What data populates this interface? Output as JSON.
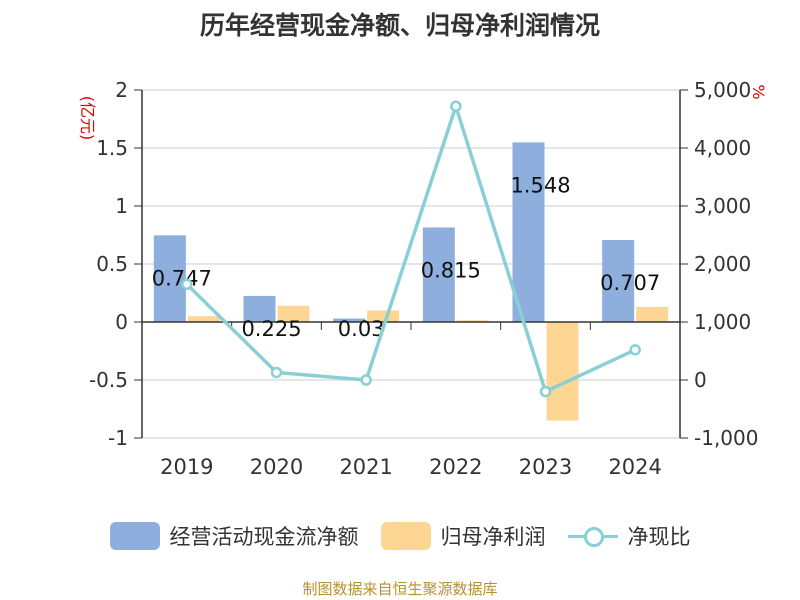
{
  "title": "历年经营现金净额、归母净利润情况",
  "source": "制图数据来自恒生聚源数据库",
  "chart_data": {
    "type": "bar",
    "categories": [
      "2019",
      "2020",
      "2021",
      "2022",
      "2023",
      "2024"
    ],
    "series": [
      {
        "name": "经营活动现金流净额",
        "type": "bar",
        "axis": "left",
        "color": "#8eaedd",
        "values": [
          0.747,
          0.225,
          0.03,
          0.815,
          1.548,
          0.707
        ],
        "labels": [
          "0.747",
          "0.225",
          "0.03",
          "0.815",
          "1.548",
          "0.707"
        ]
      },
      {
        "name": "归母净利润",
        "type": "bar",
        "axis": "left",
        "color": "#fdd694",
        "values": [
          0.05,
          0.14,
          0.1,
          0.015,
          -0.85,
          0.13
        ]
      },
      {
        "name": "净现比",
        "type": "line",
        "axis": "right",
        "color": "#88d0d6",
        "values": [
          1650,
          130,
          0,
          4720,
          -200,
          520
        ]
      }
    ],
    "y_left": {
      "unit": "(亿元)",
      "min": -1,
      "max": 2,
      "ticks": [
        2,
        1.5,
        1,
        0.5,
        0,
        -0.5,
        -1
      ],
      "tick_labels": [
        "2",
        "1.5",
        "1",
        "0.5",
        "0",
        "-0.5",
        "-1"
      ]
    },
    "y_right": {
      "unit": "%",
      "min": -1000,
      "max": 5000,
      "ticks": [
        5000,
        4000,
        3000,
        2000,
        1000,
        0,
        -1000
      ],
      "tick_labels": [
        "5,000",
        "4,000",
        "3,000",
        "2,000",
        "1,000",
        "0",
        "-1,000"
      ]
    },
    "grid": true,
    "legend": "bottom"
  }
}
